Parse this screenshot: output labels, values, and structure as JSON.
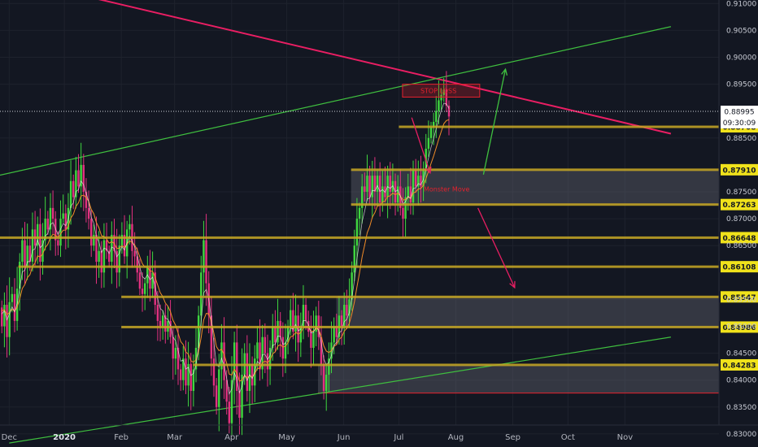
{
  "chart_data": {
    "type": "candlestick",
    "y_range": [
      0.8275,
      0.9135
    ],
    "y_ticks": [
      "0.91000",
      "0.90500",
      "0.90000",
      "0.89500",
      "0.88500",
      "0.87500",
      "0.87000",
      "0.86500",
      "0.85500",
      "0.85000",
      "0.84500",
      "0.84000",
      "0.83500",
      "0.83000"
    ],
    "x_ticks": [
      {
        "label": "Dec",
        "day": 5,
        "bold": false
      },
      {
        "label": "2020",
        "day": 35,
        "bold": true
      },
      {
        "label": "Feb",
        "day": 66,
        "bold": false
      },
      {
        "label": "Mar",
        "day": 95,
        "bold": false
      },
      {
        "label": "Apr",
        "day": 126,
        "bold": false
      },
      {
        "label": "May",
        "day": 156,
        "bold": false
      },
      {
        "label": "Jun",
        "day": 187,
        "bold": false
      },
      {
        "label": "Jul",
        "day": 217,
        "bold": false
      },
      {
        "label": "Aug",
        "day": 248,
        "bold": false
      },
      {
        "label": "Sep",
        "day": 279,
        "bold": false
      },
      {
        "label": "Oct",
        "day": 309,
        "bold": false
      },
      {
        "label": "Nov",
        "day": 340,
        "bold": false
      }
    ],
    "levels": [
      {
        "label": "0.88708",
        "value": 0.88708,
        "from_day": 217
      },
      {
        "label": "0.87910",
        "value": 0.8791,
        "from_day": 191
      },
      {
        "label": "0.87263",
        "value": 0.87263,
        "from_day": 191
      },
      {
        "label": "0.86648",
        "value": 0.86648,
        "from_day": 0
      },
      {
        "label": "0.86108",
        "value": 0.86108,
        "from_day": 10
      },
      {
        "label": "0.85547",
        "value": 0.85547,
        "from_day": 66
      },
      {
        "label": "0.84986",
        "value": 0.84986,
        "from_day": 66
      },
      {
        "label": "0.84283",
        "value": 0.84283,
        "from_day": 105
      }
    ],
    "zones": [
      {
        "y1": 0.8791,
        "y2": 0.87263,
        "from_day": 191
      },
      {
        "y1": 0.85547,
        "y2": 0.84986,
        "from_day": 183
      },
      {
        "y1": 0.84283,
        "y2": 0.8376,
        "from_day": 173
      }
    ],
    "red_line": {
      "value": 0.8376,
      "from_day": 173
    },
    "current_price": {
      "value": 0.88995,
      "label": "0.88995",
      "countdown": "09:30:09"
    },
    "trendlines": [
      {
        "color": "#e91e63",
        "from": [
          0,
          0.9151
        ],
        "to": [
          365,
          0.8858
        ]
      },
      {
        "color": "#3fbf3f",
        "from": [
          0,
          0.8781
        ],
        "to": [
          365,
          0.9057
        ]
      },
      {
        "color": "#3fbf3f",
        "from": [
          5,
          0.8283
        ],
        "to": [
          365,
          0.848
        ]
      }
    ],
    "stop_box": {
      "text": "STOP LOSS",
      "y1": 0.895,
      "y2": 0.8926,
      "from_day": 219,
      "to_day": 261
    },
    "annotation": {
      "text": "Monster Move",
      "value": 0.8755,
      "day": 243
    },
    "arrows": [
      {
        "color": "#e91e63",
        "from": [
          224,
          0.8888
        ],
        "to": [
          234,
          0.8785
        ]
      },
      {
        "color": "#3fbf3f",
        "from": [
          263,
          0.8782
        ],
        "to": [
          275,
          0.8978
        ]
      },
      {
        "color": "#e91e63",
        "from": [
          260,
          0.872
        ],
        "to": [
          280,
          0.8572
        ]
      }
    ],
    "candles": {
      "start_day": 1,
      "step_days": 1.39,
      "start_price": 0.8535,
      "closes": [
        0.85,
        0.854,
        0.848,
        0.8545,
        0.856,
        0.851,
        0.857,
        0.862,
        0.866,
        0.861,
        0.865,
        0.862,
        0.868,
        0.865,
        0.869,
        0.862,
        0.866,
        0.87,
        0.868,
        0.872,
        0.87,
        0.866,
        0.865,
        0.87,
        0.871,
        0.868,
        0.872,
        0.877,
        0.874,
        0.879,
        0.876,
        0.88,
        0.875,
        0.872,
        0.87,
        0.865,
        0.867,
        0.862,
        0.864,
        0.86,
        0.866,
        0.864,
        0.862,
        0.867,
        0.864,
        0.86,
        0.865,
        0.867,
        0.863,
        0.868,
        0.869,
        0.864,
        0.863,
        0.86,
        0.857,
        0.856,
        0.858,
        0.861,
        0.857,
        0.86,
        0.854,
        0.851,
        0.85,
        0.852,
        0.849,
        0.851,
        0.848,
        0.844,
        0.846,
        0.842,
        0.84,
        0.844,
        0.839,
        0.843,
        0.838,
        0.842,
        0.846,
        0.852,
        0.86,
        0.866,
        0.858,
        0.852,
        0.844,
        0.839,
        0.835,
        0.842,
        0.847,
        0.84,
        0.836,
        0.832,
        0.84,
        0.847,
        0.838,
        0.833,
        0.841,
        0.845,
        0.838,
        0.843,
        0.839,
        0.844,
        0.847,
        0.842,
        0.848,
        0.845,
        0.842,
        0.846,
        0.85,
        0.847,
        0.851,
        0.848,
        0.844,
        0.847,
        0.85,
        0.853,
        0.849,
        0.852,
        0.847,
        0.85,
        0.854,
        0.851,
        0.849,
        0.846,
        0.849,
        0.852,
        0.848,
        0.843,
        0.838,
        0.841,
        0.844,
        0.847,
        0.85,
        0.848,
        0.852,
        0.85,
        0.854,
        0.852,
        0.855,
        0.86,
        0.865,
        0.87,
        0.872,
        0.876,
        0.875,
        0.878,
        0.874,
        0.878,
        0.875,
        0.878,
        0.873,
        0.876,
        0.874,
        0.878,
        0.875,
        0.877,
        0.873,
        0.876,
        0.872,
        0.87,
        0.874,
        0.876,
        0.873,
        0.879,
        0.876,
        0.878,
        0.876,
        0.879,
        0.883,
        0.885,
        0.887,
        0.888,
        0.89,
        0.892,
        0.893,
        0.894,
        0.891,
        0.889
      ]
    }
  }
}
